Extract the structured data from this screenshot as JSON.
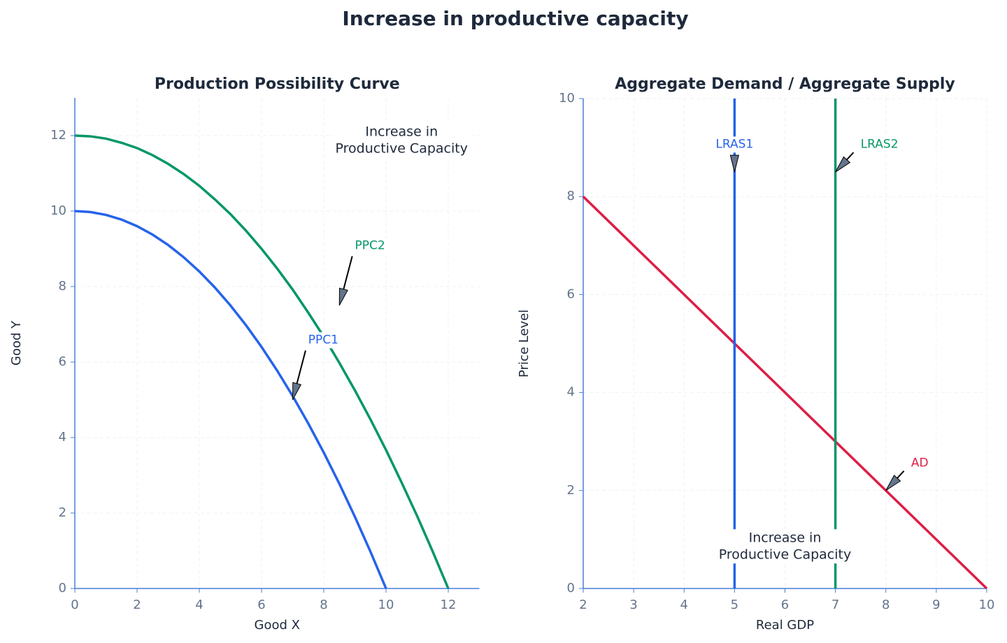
{
  "title": "Increase in productive capacity",
  "chart_data": [
    {
      "type": "line",
      "title": "Production Possibility Curve",
      "xlabel": "Good X",
      "ylabel": "Good Y",
      "x": [
        0,
        0.5,
        1,
        1.5,
        2,
        2.5,
        3,
        3.5,
        4,
        4.5,
        5,
        5.5,
        6,
        6.5,
        7,
        7.5,
        8,
        8.5,
        9,
        9.5,
        10,
        10.5,
        11,
        11.5,
        12
      ],
      "series": [
        {
          "name": "PPC1",
          "color": "#2563eb",
          "values": [
            10,
            9.975,
            9.9,
            9.775,
            9.6,
            9.375,
            9.1,
            8.775,
            8.4,
            7.975,
            7.5,
            6.975,
            6.4,
            5.775,
            5.1,
            4.375,
            3.6,
            2.775,
            1.9,
            0.975,
            0,
            null,
            null,
            null,
            null
          ]
        },
        {
          "name": "PPC2",
          "color": "#059669",
          "values": [
            12,
            11.98,
            11.92,
            11.81,
            11.67,
            11.48,
            11.25,
            10.98,
            10.67,
            10.31,
            9.92,
            9.48,
            9,
            8.48,
            7.92,
            7.31,
            6.67,
            5.98,
            5.25,
            4.48,
            3.67,
            2.81,
            1.92,
            0.98,
            0
          ]
        }
      ],
      "xlim": [
        0,
        13
      ],
      "ylim": [
        0,
        13
      ],
      "xticks": [
        0,
        2,
        4,
        6,
        8,
        10,
        12
      ],
      "yticks": [
        0,
        2,
        4,
        6,
        8,
        10,
        12
      ],
      "grid": true,
      "annotations": [
        {
          "text": "Increase in\nProductive Capacity",
          "color": "#1e293b"
        },
        {
          "text": "PPC1",
          "color": "#2563eb"
        },
        {
          "text": "PPC2",
          "color": "#059669"
        }
      ]
    },
    {
      "type": "line",
      "title": "Aggregate Demand / Aggregate Supply",
      "xlabel": "Real GDP",
      "ylabel": "Price Level",
      "series": [
        {
          "name": "AD",
          "color": "#dc1e46",
          "x": [
            2,
            10
          ],
          "values": [
            8,
            0
          ]
        },
        {
          "name": "LRAS1",
          "color": "#2563eb",
          "x": [
            5,
            5
          ],
          "values": [
            0,
            10
          ]
        },
        {
          "name": "LRAS2",
          "color": "#059669",
          "x": [
            7,
            7
          ],
          "values": [
            0,
            10
          ]
        }
      ],
      "xlim": [
        2,
        10
      ],
      "ylim": [
        0,
        10
      ],
      "xticks": [
        2,
        3,
        4,
        5,
        6,
        7,
        8,
        9,
        10
      ],
      "yticks": [
        0,
        2,
        4,
        6,
        8,
        10
      ],
      "grid": true,
      "annotations": [
        {
          "text": "Increase in\nProductive Capacity",
          "color": "#1e293b"
        },
        {
          "text": "LRAS1",
          "color": "#2563eb"
        },
        {
          "text": "LRAS2",
          "color": "#059669"
        },
        {
          "text": "AD",
          "color": "#dc1e46"
        }
      ]
    }
  ]
}
